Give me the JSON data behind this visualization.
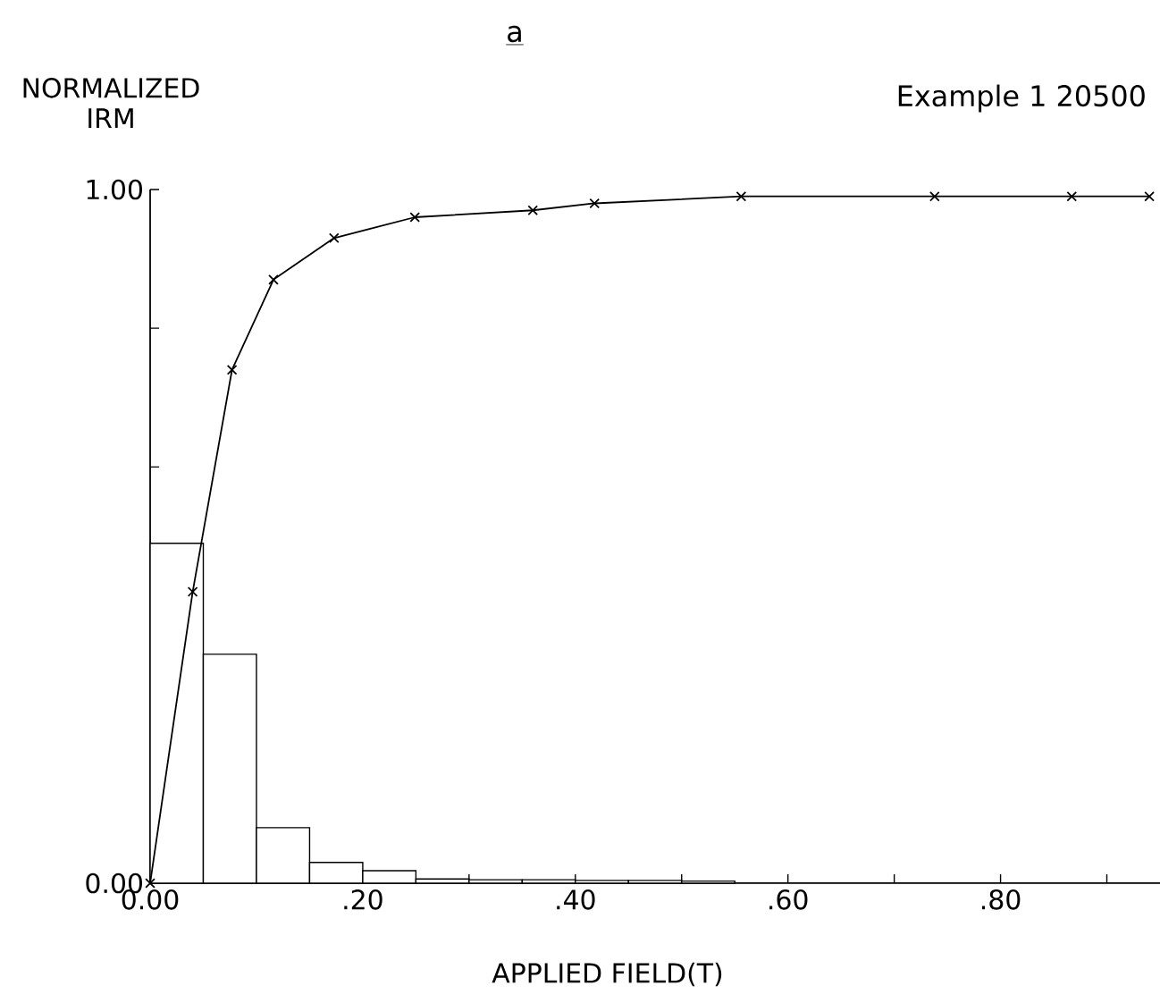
{
  "chart_data": {
    "type": "histogram",
    "title": "a",
    "subtitle": "Example 1   20500",
    "xlabel": "APPLIED FIELD(T)",
    "ylabel": "NORMALIZED IRM",
    "xlim": [
      0,
      0.95
    ],
    "ylim": [
      0,
      1.0
    ],
    "xticks": [
      {
        "value": 0,
        "label": "0.00"
      },
      {
        "value": 0.1,
        "label": null
      },
      {
        "value": 0.2,
        "label": ".20"
      },
      {
        "value": 0.3,
        "label": null
      },
      {
        "value": 0.4,
        "label": ".40"
      },
      {
        "value": 0.5,
        "label": null
      },
      {
        "value": 0.6,
        "label": ".60"
      },
      {
        "value": 0.7,
        "label": null
      },
      {
        "value": 0.8,
        "label": ".80"
      },
      {
        "value": 0.9,
        "label": null
      }
    ],
    "yticks": [
      {
        "value": 0,
        "label": "0.00"
      },
      {
        "value": 0.2,
        "label": null
      },
      {
        "value": 0.4,
        "label": null
      },
      {
        "value": 0.6,
        "label": null
      },
      {
        "value": 0.8,
        "label": null
      },
      {
        "value": 1.0,
        "label": "1.00"
      }
    ],
    "grid": false,
    "series": [
      {
        "color": "#000000",
        "bins": [
          0,
          0.05,
          0.1,
          0.15,
          0.2,
          0.25,
          0.3,
          0.35,
          0.4,
          0.45,
          0.5,
          0.55
        ],
        "values": [
          0.49,
          0.33,
          0.08,
          0.03,
          0.018,
          0.006,
          0.005,
          0.005,
          0.004,
          0.004,
          0.003
        ]
      },
      {
        "type": "line",
        "color": "#000000",
        "marker": "cross",
        "x": [
          0,
          0.04,
          0.077,
          0.116,
          0.173,
          0.249,
          0.36,
          0.418,
          0.556,
          0.738,
          0.867,
          0.94
        ],
        "values": [
          0,
          0.42,
          0.74,
          0.87,
          0.93,
          0.96,
          0.97,
          0.98,
          0.99,
          0.99,
          0.99,
          0.99
        ]
      }
    ]
  }
}
